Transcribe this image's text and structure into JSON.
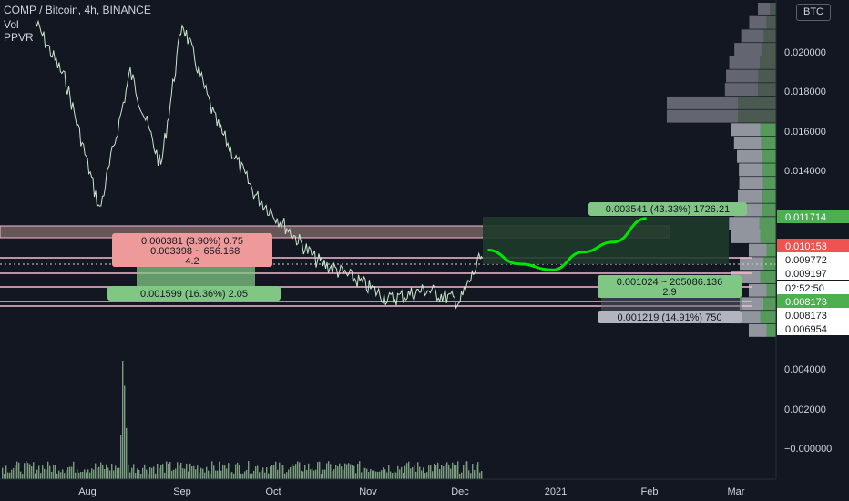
{
  "header": {
    "symbol_line": "COMP / Bitcoin, 4h, BINANCE",
    "indicator_1": "Vol",
    "indicator_2": "PPVR"
  },
  "currency_button": "BTC",
  "colors": {
    "background": "#131722",
    "candle": "#c8e6c9",
    "forecast": "#00e600",
    "green_label": "#81c784",
    "red_label": "#ef9a9a",
    "gray_label": "#b2b5be",
    "volume_bar": "#a5d6a7"
  },
  "chart_data": {
    "type": "line",
    "title": "COMP / Bitcoin, 4h, BINANCE",
    "y_axis_ticks": [
      "0.020000",
      "0.018000",
      "0.016000",
      "0.014000",
      "0.004000",
      "0.002000",
      "−0.000000"
    ],
    "x_axis_ticks": [
      "Aug",
      "Sep",
      "Oct",
      "Nov",
      "Dec",
      "2021",
      "Feb",
      "Mar"
    ],
    "price_badges": [
      {
        "value": "0.011714",
        "color": "#4caf50"
      },
      {
        "value": "0.010153",
        "color": "#ef5350"
      },
      {
        "value": "0.009772",
        "color": "#ffffff"
      },
      {
        "value": "0.009197",
        "color": "#ffffff"
      },
      {
        "value": "02:52:50",
        "color": "#ffffff"
      },
      {
        "value": "0.008173",
        "color": "#4caf50"
      },
      {
        "value": "0.008173",
        "color": "#ffffff"
      },
      {
        "value": "0.006954",
        "color": "#ffffff"
      }
    ],
    "price_series": {
      "x": [
        "Jul 15",
        "Jul 25",
        "Aug 5",
        "Aug 15",
        "Aug 25",
        "Sep 1",
        "Sep 12",
        "Sep 25",
        "Oct 5",
        "Oct 15",
        "Oct 28",
        "Nov 8",
        "Nov 20",
        "Dec 1",
        "Dec 8"
      ],
      "y": [
        0.0215,
        0.0185,
        0.012,
        0.019,
        0.0142,
        0.0215,
        0.0165,
        0.0128,
        0.0112,
        0.0095,
        0.0085,
        0.0075,
        0.008,
        0.0074,
        0.0097
      ]
    },
    "forecast_path": {
      "x": [
        "Dec 10",
        "Dec 20",
        "Dec 31",
        "Jan 10",
        "Jan 20",
        "Jan 31"
      ],
      "y": [
        0.01,
        0.0093,
        0.009,
        0.0099,
        0.0104,
        0.0116
      ]
    },
    "volume_profile_rows": 25,
    "annotations": [
      {
        "text_1": "0.000381 (3.90%) 0.75",
        "text_2": "−0.003398 ~ 656.168",
        "text_3": "4.2",
        "kind": "red"
      },
      {
        "text_1": "0.001599 (16.36%) 2.05",
        "kind": "green"
      },
      {
        "text_1": "0.003541 (43.33%) 1726.21",
        "kind": "green"
      },
      {
        "text_1": "0.001024 ~ 205086.136",
        "text_2": "2.9",
        "kind": "green"
      },
      {
        "text_1": "0.001219 (14.91%) 750",
        "kind": "gray"
      }
    ]
  }
}
